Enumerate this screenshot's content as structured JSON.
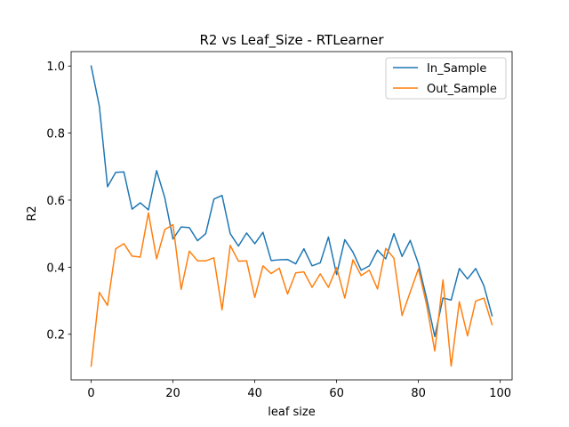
{
  "chart_data": {
    "type": "line",
    "title": "R2 vs Leaf_Size - RTLearner",
    "xlabel": "leaf size",
    "ylabel": "R2",
    "xlim": [
      -4.9,
      102.9
    ],
    "ylim": [
      0.064,
      1.043
    ],
    "x_ticks": [
      0,
      20,
      40,
      60,
      80,
      100
    ],
    "y_ticks": [
      0.2,
      0.4,
      0.6,
      0.8,
      1.0
    ],
    "x_tick_labels": [
      "0",
      "20",
      "40",
      "60",
      "80",
      "100"
    ],
    "y_tick_labels": [
      "0.2",
      "0.4",
      "0.6",
      "0.8",
      "1.0"
    ],
    "grid": false,
    "legend_position": "top-right",
    "x": [
      0,
      2,
      4,
      6,
      8,
      10,
      12,
      14,
      16,
      18,
      20,
      22,
      24,
      26,
      28,
      30,
      32,
      34,
      36,
      38,
      40,
      42,
      44,
      46,
      48,
      50,
      52,
      54,
      56,
      58,
      60,
      62,
      64,
      66,
      68,
      70,
      72,
      74,
      76,
      78,
      80,
      82,
      84,
      86,
      88,
      90,
      92,
      94,
      96,
      98
    ],
    "series": [
      {
        "name": "In_Sample",
        "color": "#1f77b4",
        "values": [
          1.0,
          0.88,
          0.64,
          0.683,
          0.684,
          0.573,
          0.592,
          0.571,
          0.688,
          0.607,
          0.484,
          0.52,
          0.518,
          0.479,
          0.5,
          0.603,
          0.614,
          0.5,
          0.463,
          0.502,
          0.47,
          0.504,
          0.42,
          0.422,
          0.423,
          0.41,
          0.455,
          0.404,
          0.413,
          0.49,
          0.378,
          0.482,
          0.445,
          0.391,
          0.404,
          0.451,
          0.425,
          0.5,
          0.432,
          0.48,
          0.41,
          0.307,
          0.193,
          0.308,
          0.302,
          0.396,
          0.365,
          0.396,
          0.345,
          0.255
        ]
      },
      {
        "name": "Out_Sample",
        "color": "#ff7f0e",
        "values": [
          0.105,
          0.325,
          0.286,
          0.455,
          0.47,
          0.433,
          0.43,
          0.562,
          0.425,
          0.512,
          0.527,
          0.334,
          0.448,
          0.419,
          0.419,
          0.428,
          0.273,
          0.465,
          0.418,
          0.419,
          0.31,
          0.404,
          0.381,
          0.397,
          0.32,
          0.383,
          0.386,
          0.34,
          0.38,
          0.34,
          0.399,
          0.308,
          0.422,
          0.375,
          0.391,
          0.335,
          0.456,
          0.427,
          0.256,
          0.326,
          0.395,
          0.288,
          0.15,
          0.362,
          0.105,
          0.297,
          0.195,
          0.299,
          0.308,
          0.229
        ]
      }
    ]
  }
}
